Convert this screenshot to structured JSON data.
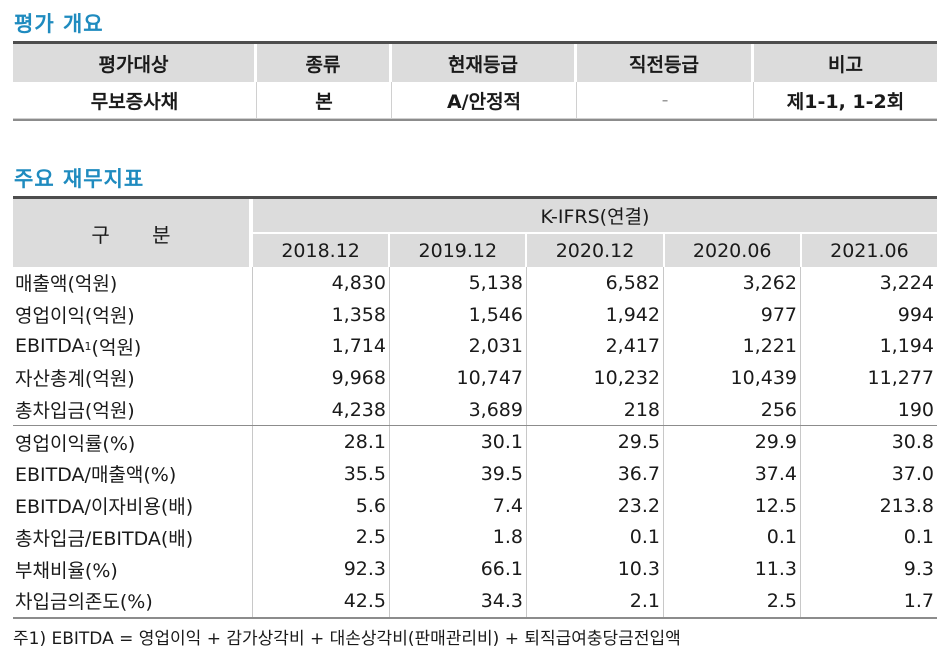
{
  "rating_overview": {
    "title": "평가 개요",
    "headers": [
      "평가대상",
      "종류",
      "현재등급",
      "직전등급",
      "비고"
    ],
    "row": [
      "무보증사채",
      "본",
      "A/안정적",
      "-",
      "제1-1, 1-2회"
    ]
  },
  "financials": {
    "title": "주요 재무지표",
    "label_header": "구 분",
    "group_header": "K-IFRS(연결)",
    "periods": [
      "2018.12",
      "2019.12",
      "2020.12",
      "2020.06",
      "2021.06"
    ],
    "group1": [
      {
        "label": "매출액(억원)",
        "values": [
          "4,830",
          "5,138",
          "6,582",
          "3,262",
          "3,224"
        ]
      },
      {
        "label": "영업이익(억원)",
        "values": [
          "1,358",
          "1,546",
          "1,942",
          "977",
          "994"
        ]
      },
      {
        "label_main": "EBITDA",
        "label_sup": "1",
        "label_rest": "(억원)",
        "values": [
          "1,714",
          "2,031",
          "2,417",
          "1,221",
          "1,194"
        ]
      },
      {
        "label": "자산총계(억원)",
        "values": [
          "9,968",
          "10,747",
          "10,232",
          "10,439",
          "11,277"
        ]
      },
      {
        "label": "총차입금(억원)",
        "values": [
          "4,238",
          "3,689",
          "218",
          "256",
          "190"
        ]
      }
    ],
    "group2": [
      {
        "label": "영업이익률(%)",
        "values": [
          "28.1",
          "30.1",
          "29.5",
          "29.9",
          "30.8"
        ]
      },
      {
        "label": "EBITDA/매출액(%)",
        "values": [
          "35.5",
          "39.5",
          "36.7",
          "37.4",
          "37.0"
        ]
      },
      {
        "label": "EBITDA/이자비용(배)",
        "values": [
          "5.6",
          "7.4",
          "23.2",
          "12.5",
          "213.8"
        ]
      },
      {
        "label": "총차입금/EBITDA(배)",
        "values": [
          "2.5",
          "1.8",
          "0.1",
          "0.1",
          "0.1"
        ]
      },
      {
        "label": "부채비율(%)",
        "values": [
          "92.3",
          "66.1",
          "10.3",
          "11.3",
          "9.3"
        ]
      },
      {
        "label": "차입금의존도(%)",
        "values": [
          "42.5",
          "34.3",
          "2.1",
          "2.5",
          "1.7"
        ]
      }
    ],
    "footnote": "주1) EBITDA = 영업이익 + 감가상각비 + 대손상각비(판매관리비) + 퇴직급여충당금전입액"
  }
}
